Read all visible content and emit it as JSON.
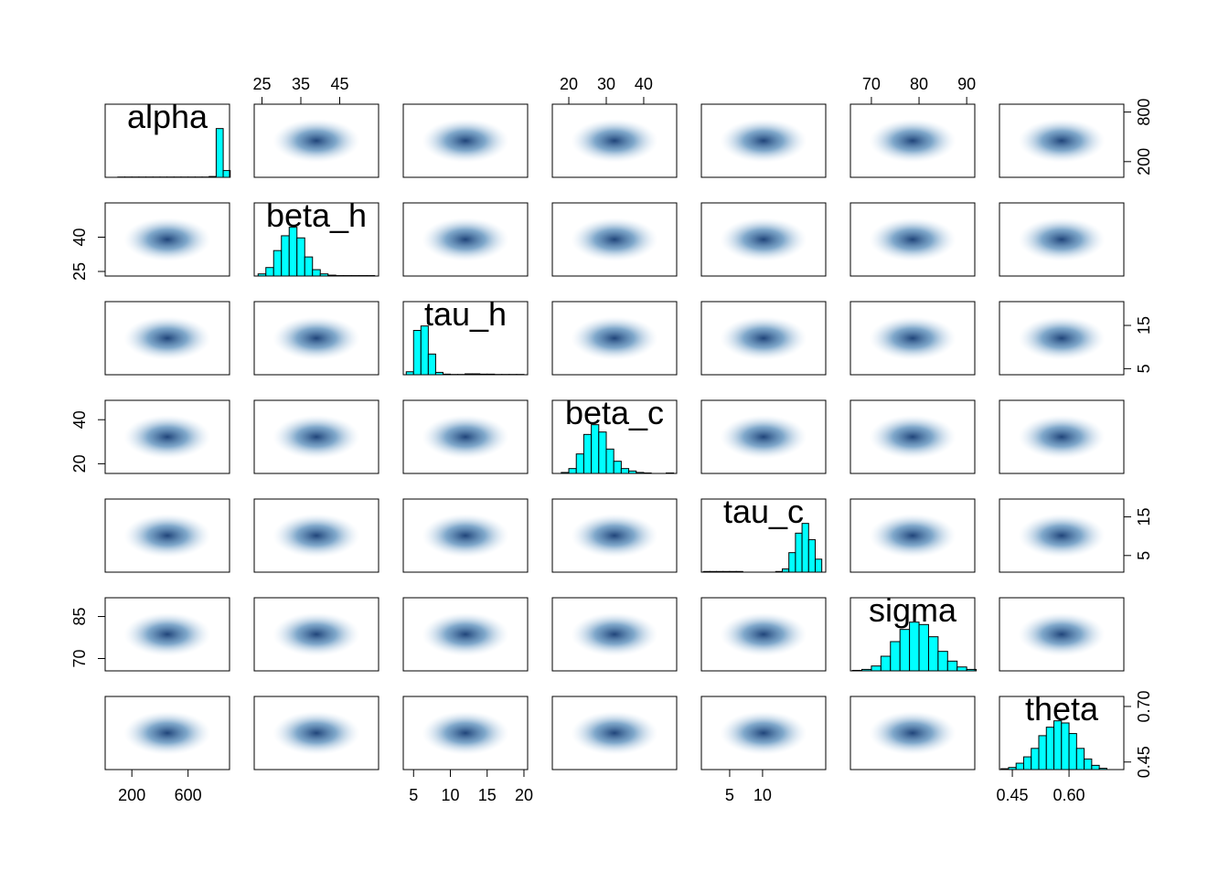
{
  "chart_data": {
    "type": "pairs",
    "variables": [
      {
        "name": "alpha",
        "lim": [
          10,
          895
        ],
        "xticks": [
          200,
          600
        ],
        "yticks": [
          200,
          800
        ],
        "bins": [
          100,
          150,
          200,
          250,
          300,
          350,
          400,
          450,
          500,
          550,
          600,
          650,
          700,
          750,
          800,
          850,
          900
        ],
        "counts": [
          1,
          1,
          1,
          1,
          1,
          1,
          1,
          1,
          1,
          1,
          1,
          1,
          1,
          3,
          180,
          25
        ]
      },
      {
        "name": "beta_h",
        "lim": [
          23,
          55
        ],
        "xticks": [
          25,
          35,
          45
        ],
        "yticks": [
          25,
          40
        ],
        "bins": [
          24,
          26,
          28,
          30,
          32,
          34,
          36,
          38,
          40,
          42,
          44,
          46,
          48,
          50,
          52,
          54
        ],
        "counts": [
          5,
          20,
          60,
          95,
          115,
          90,
          45,
          15,
          5,
          2,
          1,
          1,
          1,
          1,
          1
        ]
      },
      {
        "name": "tau_h",
        "lim": [
          3.6,
          20.5
        ],
        "xticks": [
          5,
          10,
          15,
          20
        ],
        "yticks": [
          5,
          15
        ],
        "bins": [
          4,
          5,
          6,
          7,
          8,
          9,
          10,
          11,
          12,
          13,
          14,
          15,
          16,
          17,
          18,
          19,
          20
        ],
        "counts": [
          10,
          150,
          165,
          70,
          8,
          2,
          1,
          1,
          3,
          3,
          2,
          2,
          1,
          1,
          1,
          1
        ]
      },
      {
        "name": "beta_c",
        "lim": [
          15.6,
          48.8
        ],
        "xticks": [
          20,
          30,
          40
        ],
        "yticks": [
          20,
          40
        ],
        "bins": [
          18,
          20,
          22,
          24,
          26,
          28,
          30,
          32,
          34,
          36,
          38,
          40,
          42,
          44,
          46,
          48
        ],
        "counts": [
          2,
          10,
          40,
          80,
          100,
          85,
          50,
          25,
          10,
          5,
          2,
          1,
          0,
          0,
          1
        ]
      },
      {
        "name": "tau_c",
        "lim": [
          0.7,
          19.6
        ],
        "xticks": [
          5,
          10
        ],
        "yticks": [
          5,
          15
        ],
        "bins": [
          1,
          2,
          3,
          4,
          5,
          6,
          7,
          8,
          9,
          10,
          11,
          12,
          13,
          14,
          15,
          16,
          17,
          18,
          19
        ],
        "counts": [
          1,
          1,
          1,
          1,
          1,
          1,
          0,
          0,
          0,
          0,
          0,
          1,
          5,
          30,
          60,
          75,
          50,
          20
        ]
      },
      {
        "name": "sigma",
        "lim": [
          65.6,
          91.7
        ],
        "xticks": [
          70,
          80,
          90
        ],
        "yticks": [
          70,
          85
        ],
        "bins": [
          66,
          68,
          70,
          72,
          74,
          76,
          78,
          80,
          82,
          84,
          86,
          88,
          90,
          92
        ],
        "counts": [
          1,
          3,
          10,
          30,
          60,
          85,
          100,
          95,
          70,
          40,
          20,
          8,
          3
        ]
      },
      {
        "name": "theta",
        "lim": [
          0.416,
          0.745
        ],
        "xticks": [
          0.45,
          {
            "value": 0.6,
            "label": "0.60"
          }
        ],
        "yticks": [
          0.45,
          {
            "value": 0.7,
            "label": "0.70"
          }
        ],
        "bins": [
          0.42,
          0.44,
          0.46,
          0.48,
          0.5,
          0.52,
          0.54,
          0.56,
          0.58,
          0.6,
          0.62,
          0.64,
          0.66,
          0.68,
          0.7
        ],
        "counts": [
          2,
          5,
          15,
          30,
          50,
          80,
          100,
          115,
          110,
          85,
          50,
          25,
          10,
          3
        ]
      }
    ]
  }
}
